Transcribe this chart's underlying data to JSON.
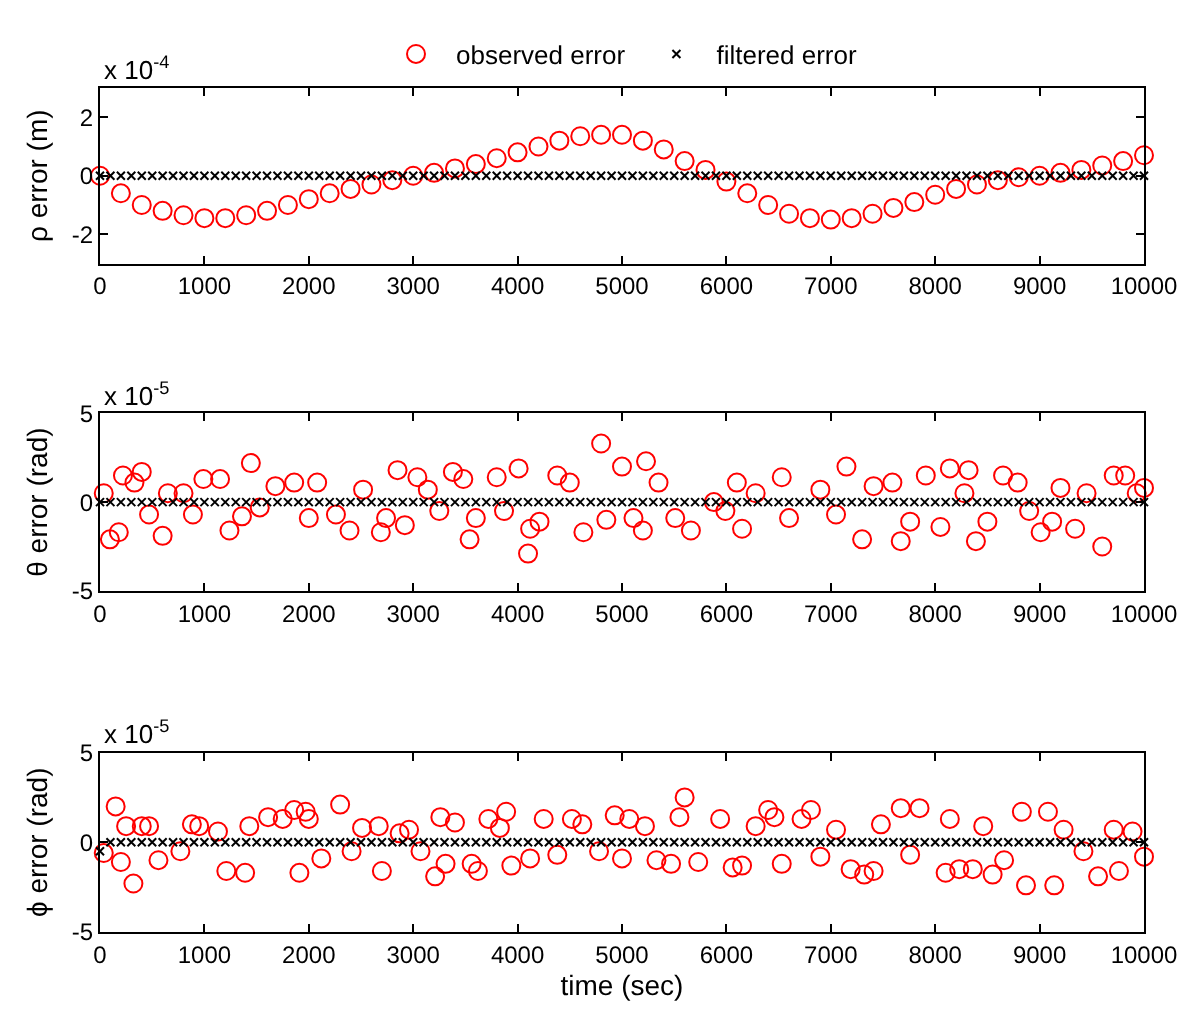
{
  "chart_data": [
    {
      "type": "scatter",
      "ylabel": "ρ error (m)",
      "annotations": [
        "x 10$^{-4}$"
      ],
      "xlim": [
        0,
        10000
      ],
      "xticks": [
        0,
        1000,
        2000,
        3000,
        4000,
        5000,
        6000,
        7000,
        8000,
        9000,
        10000
      ],
      "ylim": [
        -3,
        3
      ],
      "yticks": [
        -2,
        0,
        2
      ],
      "legend": "top",
      "series": [
        {
          "name": "observed error",
          "color": "#ff0000",
          "marker": "circle",
          "x": [
            0,
            200,
            400,
            600,
            800,
            1000,
            1200,
            1400,
            1600,
            1800,
            2000,
            2200,
            2400,
            2600,
            2800,
            3000,
            3200,
            3400,
            3600,
            3800,
            4000,
            4200,
            4400,
            4600,
            4800,
            5000,
            5200,
            5400,
            5600,
            5800,
            6000,
            6200,
            6400,
            6600,
            6800,
            7000,
            7200,
            7400,
            7600,
            7800,
            8000,
            8200,
            8400,
            8600,
            8800,
            9000,
            9200,
            9400,
            9600,
            9800,
            10000
          ],
          "values": [
            0,
            -0.6,
            -1.0,
            -1.2,
            -1.35,
            -1.45,
            -1.45,
            -1.35,
            -1.2,
            -1.0,
            -0.8,
            -0.6,
            -0.45,
            -0.3,
            -0.15,
            0,
            0.1,
            0.25,
            0.4,
            0.6,
            0.8,
            1.0,
            1.2,
            1.35,
            1.4,
            1.4,
            1.2,
            0.9,
            0.5,
            0.2,
            -0.2,
            -0.6,
            -1.0,
            -1.3,
            -1.45,
            -1.5,
            -1.45,
            -1.3,
            -1.1,
            -0.9,
            -0.65,
            -0.45,
            -0.3,
            -0.15,
            -0.05,
            0,
            0.1,
            0.2,
            0.35,
            0.5,
            0.7
          ]
        },
        {
          "name": "filtered error",
          "color": "#000000",
          "marker": "cross",
          "x": [
            0,
            100,
            200,
            300,
            400,
            500,
            600,
            700,
            800,
            900,
            1000,
            1100,
            1200,
            1300,
            1400,
            1500,
            1600,
            1700,
            1800,
            1900,
            2000,
            2100,
            2200,
            2300,
            2400,
            2500,
            2600,
            2700,
            2800,
            2900,
            3000,
            3100,
            3200,
            3300,
            3400,
            3500,
            3600,
            3700,
            3800,
            3900,
            4000,
            4100,
            4200,
            4300,
            4400,
            4500,
            4600,
            4700,
            4800,
            4900,
            5000,
            5100,
            5200,
            5300,
            5400,
            5500,
            5600,
            5700,
            5800,
            5900,
            6000,
            6100,
            6200,
            6300,
            6400,
            6500,
            6600,
            6700,
            6800,
            6900,
            7000,
            7100,
            7200,
            7300,
            7400,
            7500,
            7600,
            7700,
            7800,
            7900,
            8000,
            8100,
            8200,
            8300,
            8400,
            8500,
            8600,
            8700,
            8800,
            8900,
            9000,
            9100,
            9200,
            9300,
            9400,
            9500,
            9600,
            9700,
            9800,
            9900,
            10000
          ],
          "values": [
            0,
            0,
            0,
            0,
            0,
            0,
            0,
            0,
            0,
            0,
            0,
            0,
            0,
            0,
            0,
            0,
            0,
            0,
            0,
            0,
            0,
            0,
            0,
            0,
            0,
            0,
            0,
            0,
            0,
            0,
            0,
            0,
            0,
            0,
            0,
            0,
            0,
            0,
            0,
            0,
            0,
            0,
            0,
            0,
            0,
            0,
            0,
            0,
            0,
            0,
            0,
            0,
            0,
            0,
            0,
            0,
            0,
            0,
            0,
            0,
            0,
            0,
            0,
            0,
            0,
            0,
            0,
            0,
            0,
            0,
            0,
            0,
            0,
            0,
            0,
            0,
            0,
            0,
            0,
            0,
            0,
            0,
            0,
            0,
            0,
            0,
            0,
            0,
            0,
            0,
            0,
            0,
            0,
            0,
            0,
            0,
            0,
            0,
            0,
            0,
            0
          ]
        }
      ]
    },
    {
      "type": "scatter",
      "ylabel": "θ error (rad)",
      "annotations": [
        "x 10$^{-5}$"
      ],
      "xlim": [
        0,
        10000
      ],
      "xticks": [
        0,
        1000,
        2000,
        3000,
        4000,
        5000,
        6000,
        7000,
        8000,
        9000,
        10000
      ],
      "ylim": [
        -5,
        5
      ],
      "yticks": [
        -5,
        0,
        5
      ],
      "series": [
        {
          "color": "#ff0000",
          "marker": "circle",
          "x": [
            36,
            95,
            180,
            220,
            330,
            400,
            470,
            600,
            650,
            800,
            890,
            990,
            1150,
            1240,
            1360,
            1445,
            1530,
            1680,
            1860,
            2000,
            2080,
            2260,
            2390,
            2520,
            2690,
            2740,
            2850,
            2920,
            3040,
            3140,
            3250,
            3380,
            3480,
            3540,
            3600,
            3800,
            3870,
            4010,
            4100,
            4120,
            4210,
            4380,
            4500,
            4630,
            4800,
            4850,
            5000,
            5110,
            5200,
            5230,
            5350,
            5510,
            5660,
            5880,
            5990,
            6100,
            6150,
            6280,
            6530,
            6600,
            6900,
            7050,
            7150,
            7300,
            7410,
            7590,
            7670,
            7760,
            7910,
            8050,
            8140,
            8280,
            8320,
            8390,
            8500,
            8650,
            8790,
            8900,
            9010,
            9120,
            9200,
            9340,
            9450,
            9600,
            9710,
            9820,
            9930,
            10000
          ],
          "values": [
            0.5,
            -2.1,
            -1.7,
            1.5,
            1.1,
            1.7,
            -0.7,
            -1.9,
            0.5,
            0.5,
            -0.7,
            1.3,
            1.3,
            -1.6,
            -0.8,
            2.2,
            -0.3,
            0.9,
            1.1,
            -0.9,
            1.1,
            -0.7,
            -1.6,
            0.7,
            -1.7,
            -0.9,
            1.8,
            -1.3,
            1.4,
            0.7,
            -0.5,
            1.7,
            1.3,
            -2.1,
            -0.9,
            1.4,
            -0.5,
            1.9,
            -2.9,
            -1.5,
            -1.1,
            1.5,
            1.1,
            -1.7,
            3.3,
            -1.0,
            2.0,
            -0.9,
            -1.6,
            2.3,
            1.1,
            -0.9,
            -1.6,
            0,
            -0.5,
            1.1,
            -1.5,
            0.5,
            1.4,
            -0.9,
            0.7,
            -0.7,
            2.0,
            -2.1,
            0.9,
            1.1,
            -2.2,
            -1.1,
            1.5,
            -1.4,
            1.9,
            0.5,
            1.8,
            -2.2,
            -1.1,
            1.5,
            1.1,
            -0.5,
            -1.7,
            -1.1,
            0.8,
            -1.5,
            0.5,
            -2.5,
            1.5,
            1.5,
            0.5,
            0.8
          ]
        },
        {
          "color": "#000000",
          "marker": "cross",
          "x": [
            0,
            100,
            200,
            300,
            400,
            500,
            600,
            700,
            800,
            900,
            1000,
            1100,
            1200,
            1300,
            1400,
            1500,
            1600,
            1700,
            1800,
            1900,
            2000,
            2100,
            2200,
            2300,
            2400,
            2500,
            2600,
            2700,
            2800,
            2900,
            3000,
            3100,
            3200,
            3300,
            3400,
            3500,
            3600,
            3700,
            3800,
            3900,
            4000,
            4100,
            4200,
            4300,
            4400,
            4500,
            4600,
            4700,
            4800,
            4900,
            5000,
            5100,
            5200,
            5300,
            5400,
            5500,
            5600,
            5700,
            5800,
            5900,
            6000,
            6100,
            6200,
            6300,
            6400,
            6500,
            6600,
            6700,
            6800,
            6900,
            7000,
            7100,
            7200,
            7300,
            7400,
            7500,
            7600,
            7700,
            7800,
            7900,
            8000,
            8100,
            8200,
            8300,
            8400,
            8500,
            8600,
            8700,
            8800,
            8900,
            9000,
            9100,
            9200,
            9300,
            9400,
            9500,
            9600,
            9700,
            9800,
            9900,
            10000
          ],
          "values": [
            0,
            0,
            0,
            0,
            0,
            0,
            0,
            0,
            0,
            0,
            0,
            0,
            0,
            0,
            0,
            0,
            0,
            0,
            0,
            0,
            0,
            0,
            0,
            0,
            0,
            0,
            0,
            0,
            0,
            0,
            0,
            0,
            0,
            0,
            0,
            0,
            0,
            0,
            0,
            0,
            0,
            0,
            0,
            0,
            0,
            0,
            0,
            0,
            0,
            0,
            0,
            0,
            0,
            0,
            0,
            0,
            0,
            0,
            0,
            0,
            0,
            0,
            0,
            0,
            0,
            0,
            0,
            0,
            0,
            0,
            0,
            0,
            0,
            0,
            0,
            0,
            0,
            0,
            0,
            0,
            0,
            0,
            0,
            0,
            0,
            0,
            0,
            0,
            0,
            0,
            0,
            0,
            0,
            0,
            0,
            0,
            0,
            0,
            0,
            0,
            0
          ]
        }
      ]
    },
    {
      "type": "scatter",
      "ylabel": "ϕ error (rad)",
      "xlabel": "time (sec)",
      "annotations": [
        "x 10$^{-5}$"
      ],
      "xlim": [
        0,
        10000
      ],
      "xticks": [
        0,
        1000,
        2000,
        3000,
        4000,
        5000,
        6000,
        7000,
        8000,
        9000,
        10000
      ],
      "ylim": [
        -5,
        5
      ],
      "yticks": [
        -5,
        0,
        5
      ],
      "series": [
        {
          "color": "#ff0000",
          "marker": "circle",
          "x": [
            36,
            150,
            200,
            250,
            320,
            400,
            470,
            560,
            770,
            880,
            950,
            1130,
            1210,
            1390,
            1430,
            1610,
            1750,
            1860,
            1910,
            1970,
            2000,
            2120,
            2300,
            2410,
            2510,
            2670,
            2700,
            2870,
            2960,
            3070,
            3210,
            3260,
            3310,
            3400,
            3560,
            3620,
            3720,
            3830,
            3890,
            3940,
            4120,
            4250,
            4380,
            4520,
            4620,
            4780,
            4930,
            5000,
            5070,
            5220,
            5330,
            5470,
            5550,
            5600,
            5730,
            5940,
            6060,
            6150,
            6280,
            6400,
            6460,
            6530,
            6720,
            6810,
            6900,
            7050,
            7190,
            7320,
            7410,
            7480,
            7670,
            7760,
            7850,
            8100,
            8140,
            8230,
            8360,
            8460,
            8550,
            8660,
            8830,
            8870,
            9080,
            9140,
            9230,
            9420,
            9560,
            9710,
            9760,
            9890,
            10000
          ],
          "values": [
            -0.6,
            2.0,
            -1.1,
            0.9,
            -2.3,
            0.9,
            0.9,
            -1.0,
            -0.5,
            1.0,
            0.9,
            0.6,
            -1.6,
            -1.7,
            0.9,
            1.4,
            1.3,
            1.8,
            -1.7,
            1.7,
            1.3,
            -0.9,
            2.1,
            -0.5,
            0.8,
            0.9,
            -1.6,
            0.5,
            0.7,
            -0.5,
            -1.9,
            1.4,
            -1.2,
            1.1,
            -1.2,
            -1.6,
            1.3,
            0.8,
            1.7,
            -1.3,
            -0.9,
            1.3,
            -0.7,
            1.3,
            1.0,
            -0.5,
            1.5,
            -0.9,
            1.3,
            0.9,
            -1.0,
            -1.2,
            1.4,
            2.5,
            -1.1,
            1.3,
            -1.4,
            -1.3,
            0.9,
            1.8,
            1.4,
            -1.2,
            1.3,
            1.8,
            -0.8,
            0.7,
            -1.5,
            -1.8,
            -1.6,
            1.0,
            1.9,
            -0.7,
            1.9,
            -1.7,
            1.3,
            -1.5,
            -1.5,
            0.9,
            -1.8,
            -1.0,
            1.7,
            -2.4,
            1.7,
            -2.4,
            0.7,
            -0.5,
            -1.9,
            0.7,
            -1.6,
            0.6,
            -0.8
          ]
        },
        {
          "color": "#000000",
          "marker": "cross",
          "x": [
            0,
            100,
            200,
            300,
            400,
            500,
            600,
            700,
            800,
            900,
            1000,
            1100,
            1200,
            1300,
            1400,
            1500,
            1600,
            1700,
            1800,
            1900,
            2000,
            2100,
            2200,
            2300,
            2400,
            2500,
            2600,
            2700,
            2800,
            2900,
            3000,
            3100,
            3200,
            3300,
            3400,
            3500,
            3600,
            3700,
            3800,
            3900,
            4000,
            4100,
            4200,
            4300,
            4400,
            4500,
            4600,
            4700,
            4800,
            4900,
            5000,
            5100,
            5200,
            5300,
            5400,
            5500,
            5600,
            5700,
            5800,
            5900,
            6000,
            6100,
            6200,
            6300,
            6400,
            6500,
            6600,
            6700,
            6800,
            6900,
            7000,
            7100,
            7200,
            7300,
            7400,
            7500,
            7600,
            7700,
            7800,
            7900,
            8000,
            8100,
            8200,
            8300,
            8400,
            8500,
            8600,
            8700,
            8800,
            8900,
            9000,
            9100,
            9200,
            9300,
            9400,
            9500,
            9600,
            9700,
            9800,
            9900,
            10000
          ],
          "values": [
            -0.5,
            0,
            0,
            0,
            0,
            0,
            0,
            0,
            0,
            0,
            0,
            0,
            0,
            0,
            0,
            0,
            0,
            0,
            0,
            0,
            0,
            0,
            0,
            0,
            0,
            0,
            0,
            0,
            0,
            0,
            0,
            0,
            0,
            0,
            0,
            0,
            0,
            0,
            0,
            0,
            0,
            0,
            0,
            0,
            0,
            0,
            0,
            0,
            0,
            0,
            0,
            0,
            0,
            0,
            0,
            0,
            0,
            0,
            0,
            0,
            0,
            0,
            0,
            0,
            0,
            0,
            0,
            0,
            0,
            0,
            0,
            0,
            0,
            0,
            0,
            0,
            0,
            0,
            0,
            0,
            0,
            0,
            0,
            0,
            0,
            0,
            0,
            0,
            0,
            0,
            0,
            0,
            0,
            0,
            0,
            0,
            0,
            0,
            0,
            0,
            0
          ]
        }
      ]
    }
  ]
}
